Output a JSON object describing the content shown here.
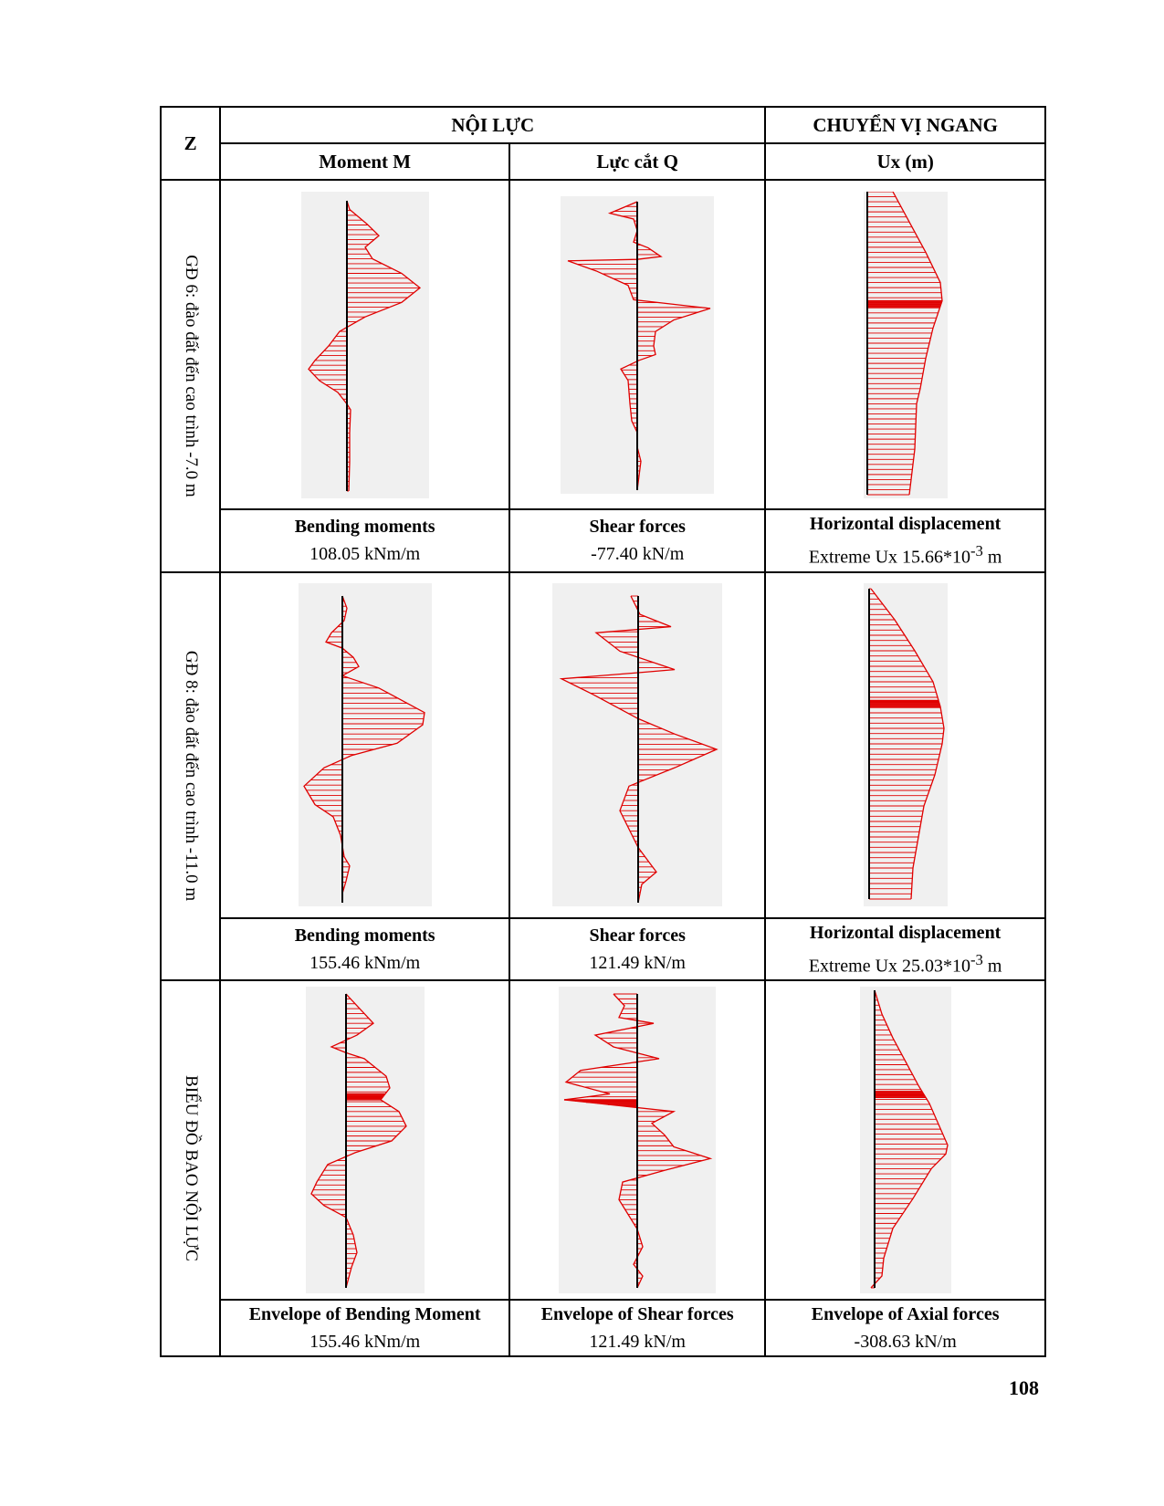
{
  "header": {
    "z": "Z",
    "noi_luc": "NỘI LỰC",
    "chuyen_vi": "CHUYỂN VỊ NGANG",
    "moment": "Moment M",
    "shear": "Lực cắt Q",
    "ux": "Ux (m)"
  },
  "stages": [
    {
      "label": "GĐ 6: đào đất đến cao trình -7.0 m",
      "moment_title": "Bending moments",
      "moment_value": "108.05 kNm/m",
      "shear_title": "Shear forces",
      "shear_value": "-77.40 kN/m",
      "disp_title": "Horizontal displacement",
      "disp_prefix": "Extreme Ux 15.66*10",
      "disp_exp": "-3",
      "disp_unit": " m"
    },
    {
      "label": "GĐ 8: đào đất đến cao trình -11.0 m",
      "moment_title": "Bending moments",
      "moment_value": "155.46 kNm/m",
      "shear_title": "Shear forces",
      "shear_value": "121.49 kN/m",
      "disp_title": "Horizontal displacement",
      "disp_prefix": "Extreme Ux 25.03*10",
      "disp_exp": "-3",
      "disp_unit": " m"
    },
    {
      "label": "BIỂU ĐỒ BAO NỘI LỰC",
      "moment_title": "Envelope of Bending Moment",
      "moment_value": "155.46 kNm/m",
      "shear_title": "Envelope of Shear forces",
      "shear_value": "121.49 kN/m",
      "disp_title": "Envelope of Axial forces",
      "disp_value": "-308.63 kN/m"
    }
  ],
  "page_number": "108",
  "colors": {
    "diagram_line": "#e00000",
    "diagram_bg": "#f0f0f0",
    "axis": "#000000"
  }
}
